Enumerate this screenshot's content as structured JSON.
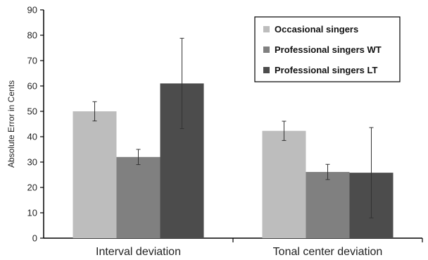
{
  "chart_data": {
    "type": "bar",
    "title": "",
    "xlabel": "",
    "ylabel": "Absolute Error in Cents",
    "ylim": [
      0,
      90
    ],
    "yticks": [
      0,
      10,
      20,
      30,
      40,
      50,
      60,
      70,
      80,
      90
    ],
    "categories": [
      "Interval deviation",
      "Tonal center deviation"
    ],
    "series": [
      {
        "name": "Occasional singers",
        "values": [
          50,
          42.3
        ],
        "errors": [
          3.8,
          3.8
        ],
        "color": "#bdbdbd"
      },
      {
        "name": "Professional singers WT",
        "values": [
          32,
          26.1
        ],
        "errors": [
          3,
          3
        ],
        "color": "#808080"
      },
      {
        "name": "Professional singers LT",
        "values": [
          61,
          25.8
        ],
        "errors": [
          17.8,
          17.8
        ],
        "color": "#4c4c4c"
      }
    ],
    "grid": false,
    "legend_position": "top-right"
  }
}
